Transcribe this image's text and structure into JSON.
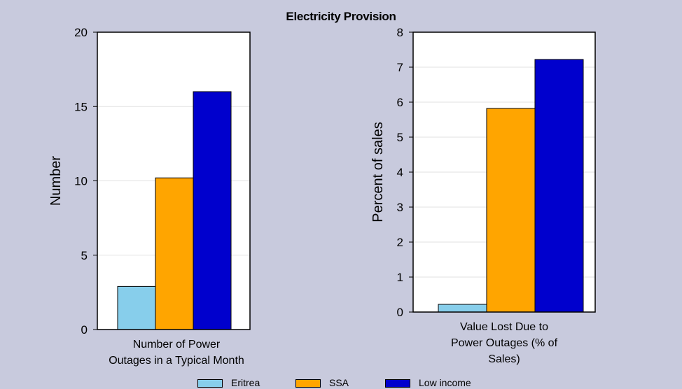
{
  "title": "Electricity Provision",
  "chart_data": [
    {
      "type": "bar",
      "categories": [
        "Number of Power Outages in a Typical Month"
      ],
      "category_lines": [
        "Number of Power",
        "Outages in a Typical Month"
      ],
      "series": [
        {
          "name": "Eritrea",
          "values": [
            2.9
          ]
        },
        {
          "name": "SSA",
          "values": [
            10.2
          ]
        },
        {
          "name": "Low income",
          "values": [
            16.0
          ]
        }
      ],
      "ylabel": "Number",
      "ylim": [
        0,
        20
      ],
      "yticks": [
        0,
        5,
        10,
        15,
        20
      ],
      "grid": true
    },
    {
      "type": "bar",
      "categories": [
        "Value Lost Due to Power Outages (% of Sales)"
      ],
      "category_lines": [
        "Value Lost Due to",
        "Power Outages (% of",
        "Sales)"
      ],
      "series": [
        {
          "name": "Eritrea",
          "values": [
            0.22
          ]
        },
        {
          "name": "SSA",
          "values": [
            5.82
          ]
        },
        {
          "name": "Low income",
          "values": [
            7.22
          ]
        }
      ],
      "ylabel": "Percent of sales",
      "ylim": [
        0,
        8
      ],
      "yticks": [
        0,
        1,
        2,
        3,
        4,
        5,
        6,
        7,
        8
      ],
      "grid": true
    }
  ],
  "colors": {
    "Eritrea": "#87ceeb",
    "SSA": "#ffa500",
    "Low income": "#0000cd"
  },
  "legend": {
    "placement": "bottom",
    "items": [
      {
        "label": "Eritrea",
        "color": "#87ceeb"
      },
      {
        "label": "SSA",
        "color": "#ffa500"
      },
      {
        "label": "Low income",
        "color": "#0000cd"
      }
    ]
  }
}
